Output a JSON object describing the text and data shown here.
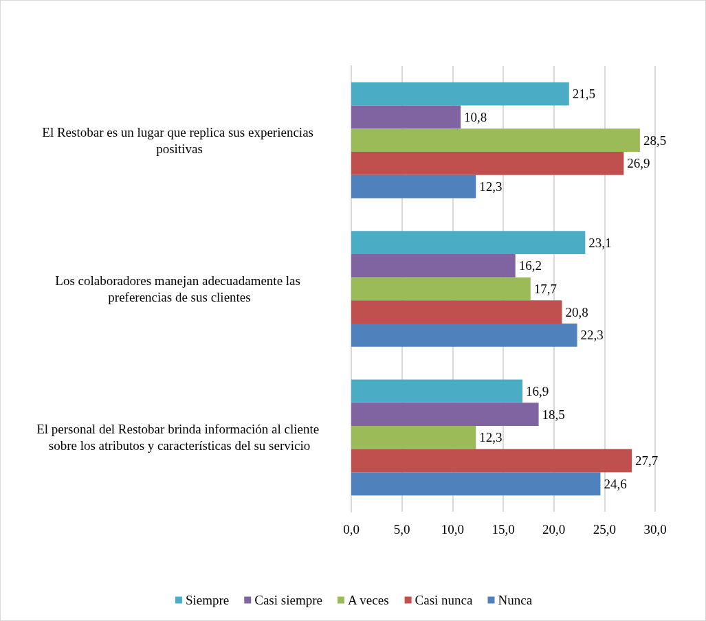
{
  "chart_data": {
    "type": "bar",
    "orientation": "horizontal",
    "categories": [
      "El Restobar es un lugar que replica sus experiencias positivas",
      "Los colaboradores manejan adecuadamente las preferencias de sus clientes",
      "El personal del Restobar brinda información al cliente sobre los atributos y características del su servicio"
    ],
    "series": [
      {
        "name": "Siempre",
        "color": "#4bacc6",
        "values": [
          21.5,
          23.1,
          16.9
        ],
        "value_labels": [
          "21,5",
          "23,1",
          "16,9"
        ]
      },
      {
        "name": "Casi siempre",
        "color": "#8064a2",
        "values": [
          10.8,
          16.2,
          18.5
        ],
        "value_labels": [
          "10,8",
          "16,2",
          "18,5"
        ]
      },
      {
        "name": "A veces",
        "color": "#9bbb59",
        "values": [
          28.5,
          17.7,
          12.3
        ],
        "value_labels": [
          "28,5",
          "17,7",
          "12,3"
        ]
      },
      {
        "name": "Casi nunca",
        "color": "#c0504d",
        "values": [
          26.9,
          20.8,
          27.7
        ],
        "value_labels": [
          "26,9",
          "20,8",
          "27,7"
        ]
      },
      {
        "name": "Nunca",
        "color": "#4f81bd",
        "values": [
          12.3,
          22.3,
          24.6
        ],
        "value_labels": [
          "12,3",
          "22,3",
          "24,6"
        ]
      }
    ],
    "xlim": [
      0,
      30
    ],
    "xticks": [
      {
        "value": 0,
        "label": "0,0"
      },
      {
        "value": 5,
        "label": "5,0"
      },
      {
        "value": 10,
        "label": "10,0"
      },
      {
        "value": 15,
        "label": "15,0"
      },
      {
        "value": 20,
        "label": "20,0"
      },
      {
        "value": 25,
        "label": "25,0"
      },
      {
        "value": 30,
        "label": "30,0"
      }
    ],
    "grid": "x",
    "legend": "bottom"
  }
}
